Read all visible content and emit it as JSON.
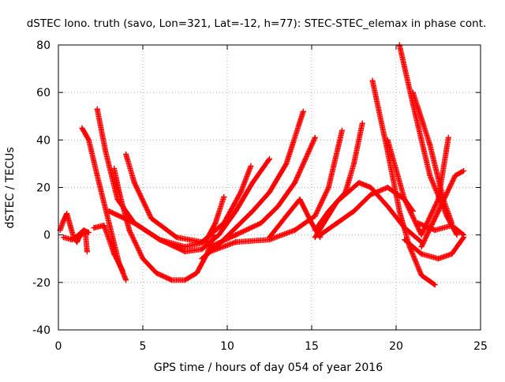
{
  "chart_data": {
    "type": "scatter",
    "title": "dSTEC Iono. truth (savo, Lon=321, Lat=-12, h=77): STEC-STEC_elemax in phase cont.",
    "xlabel": "GPS time / hours of day 054 of year 2016",
    "ylabel": "dSTEC  / TECUs",
    "xlim": [
      0,
      25
    ],
    "ylim": [
      -40,
      80
    ],
    "xticks": [
      0,
      5,
      10,
      15,
      20,
      25
    ],
    "yticks": [
      -40,
      -20,
      0,
      20,
      40,
      60,
      80
    ],
    "grid": true,
    "legend": "none",
    "marker": "+",
    "color": "#ff0000",
    "series": [
      {
        "x": [
          0.1,
          0.3,
          0.5,
          0.7,
          0.9,
          1.1,
          1.3,
          1.6,
          1.7
        ],
        "y": [
          2,
          6,
          9,
          4,
          -1,
          -3,
          0,
          1,
          -7
        ]
      },
      {
        "x": [
          0.3,
          0.8,
          1.2,
          1.5,
          1.8
        ],
        "y": [
          -1,
          -2,
          0,
          2,
          1
        ]
      },
      {
        "x": [
          1.4,
          1.8,
          2.3,
          3.0,
          3.6,
          4.0
        ],
        "y": [
          45,
          40,
          25,
          5,
          -12,
          -19
        ]
      },
      {
        "x": [
          2.3,
          2.8,
          3.5,
          4.5,
          6.0,
          7.5,
          8.7,
          9.3,
          9.8
        ],
        "y": [
          53,
          35,
          15,
          5,
          -2,
          -5,
          -3,
          5,
          16
        ]
      },
      {
        "x": [
          2.1,
          2.7,
          3.3,
          3.8
        ],
        "y": [
          3,
          4,
          -8,
          -15
        ]
      },
      {
        "x": [
          3.3,
          3.6,
          4.2,
          5.0,
          5.8,
          6.7,
          7.5,
          8.2,
          8.8,
          9.2
        ],
        "y": [
          28,
          18,
          2,
          -10,
          -16,
          -19,
          -19,
          -16,
          -8,
          0
        ]
      },
      {
        "x": [
          4.0,
          4.5,
          5.5,
          7.0,
          8.5,
          9.8,
          10.8,
          11.4
        ],
        "y": [
          34,
          22,
          7,
          -1,
          -3,
          5,
          18,
          29
        ]
      },
      {
        "x": [
          3.0,
          4.5,
          6.0,
          7.5,
          8.5,
          9.5,
          10.5,
          11.5,
          12.5
        ],
        "y": [
          10,
          5,
          -2,
          -7,
          -6,
          0,
          10,
          22,
          32
        ]
      },
      {
        "x": [
          8.5,
          9.5,
          10.5,
          11.5,
          12.5,
          13.5,
          14.5
        ],
        "y": [
          -10,
          -4,
          3,
          10,
          18,
          30,
          52
        ]
      },
      {
        "x": [
          9.0,
          10.5,
          12.0,
          13.0,
          14.0,
          15.2
        ],
        "y": [
          -5,
          0,
          5,
          12,
          22,
          41
        ]
      },
      {
        "x": [
          9.0,
          10.5,
          12.5,
          14.0,
          15.2,
          16.0,
          16.8
        ],
        "y": [
          -7,
          -3,
          -2,
          2,
          8,
          20,
          44
        ]
      },
      {
        "x": [
          12.5,
          13.5,
          14.3,
          15.0,
          15.5
        ],
        "y": [
          -1,
          8,
          15,
          5,
          -1
        ]
      },
      {
        "x": [
          15.2,
          16.0,
          17.0,
          17.5,
          18.0
        ],
        "y": [
          2,
          10,
          18,
          30,
          47
        ]
      },
      {
        "x": [
          15.2,
          16.5,
          17.8,
          18.5,
          19.5,
          20.5,
          21.5
        ],
        "y": [
          -1,
          14,
          22,
          20,
          12,
          3,
          -3
        ]
      },
      {
        "x": [
          15.5,
          16.5,
          17.5,
          18.5,
          19.5,
          20.5,
          21.0
        ],
        "y": [
          0,
          5,
          10,
          17,
          20,
          15,
          10
        ]
      },
      {
        "x": [
          18.6,
          19.5,
          20.2,
          20.8,
          21.5,
          22.3
        ],
        "y": [
          65,
          35,
          10,
          -5,
          -17,
          -21
        ]
      },
      {
        "x": [
          20.2,
          21.0,
          22.0,
          23.0,
          23.6
        ],
        "y": [
          80,
          55,
          25,
          8,
          0
        ]
      },
      {
        "x": [
          21.0,
          22.0,
          22.8,
          23.3
        ],
        "y": [
          60,
          38,
          15,
          5
        ]
      },
      {
        "x": [
          19.5,
          20.5,
          21.5,
          22.5,
          23.1
        ],
        "y": [
          40,
          15,
          0,
          15,
          41
        ]
      },
      {
        "x": [
          21.5,
          22.5,
          23.5,
          24.0
        ],
        "y": [
          -5,
          10,
          25,
          27
        ]
      },
      {
        "x": [
          20.5,
          21.5,
          22.5,
          23.3,
          24.0
        ],
        "y": [
          -2,
          -8,
          -10,
          -8,
          -1
        ]
      },
      {
        "x": [
          21.3,
          22.3,
          23.3,
          24.0
        ],
        "y": [
          5,
          2,
          4,
          0
        ]
      }
    ]
  }
}
